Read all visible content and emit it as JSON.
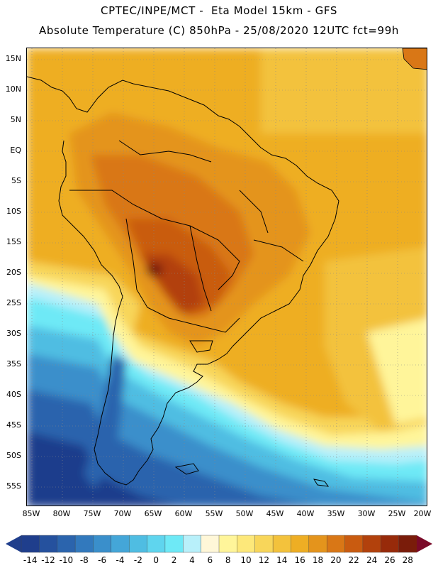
{
  "header": {
    "line1": "CPTEC/INPE/MCT -  Eta Model 15km - GFS",
    "line2": "Absolute Temperature (C) 850hPa - 25/08/2020 12UTC fct=99h"
  },
  "map": {
    "lat_labels": [
      "15N",
      "10N",
      "5N",
      "EQ",
      "5S",
      "10S",
      "15S",
      "20S",
      "25S",
      "30S",
      "35S",
      "40S",
      "45S",
      "50S",
      "55S"
    ],
    "lon_labels": [
      "85W",
      "80W",
      "75W",
      "70W",
      "65W",
      "60W",
      "55W",
      "50W",
      "45W",
      "40W",
      "35W",
      "30W",
      "25W",
      "20W"
    ]
  },
  "colorbar": {
    "labels": [
      "-14",
      "-12",
      "-10",
      "-8",
      "-6",
      "-4",
      "-2",
      "0",
      "2",
      "4",
      "6",
      "8",
      "10",
      "12",
      "14",
      "16",
      "18",
      "20",
      "22",
      "24",
      "26",
      "28"
    ],
    "colors": [
      "#1f3e8c",
      "#25519e",
      "#2b64ad",
      "#3279bd",
      "#3a8fcb",
      "#44a6d8",
      "#4fbde2",
      "#5fd5ee",
      "#6ee9f6",
      "#b8f0fa",
      "#fff7d8",
      "#fff59a",
      "#fde87a",
      "#f8d65a",
      "#f3c23c",
      "#eeae24",
      "#e4941c",
      "#d97716",
      "#c95b10",
      "#b2410c",
      "#972a0a",
      "#7a1c0a"
    ],
    "under_color": "#1f3e8c",
    "over_color": "#7a0a28"
  }
}
